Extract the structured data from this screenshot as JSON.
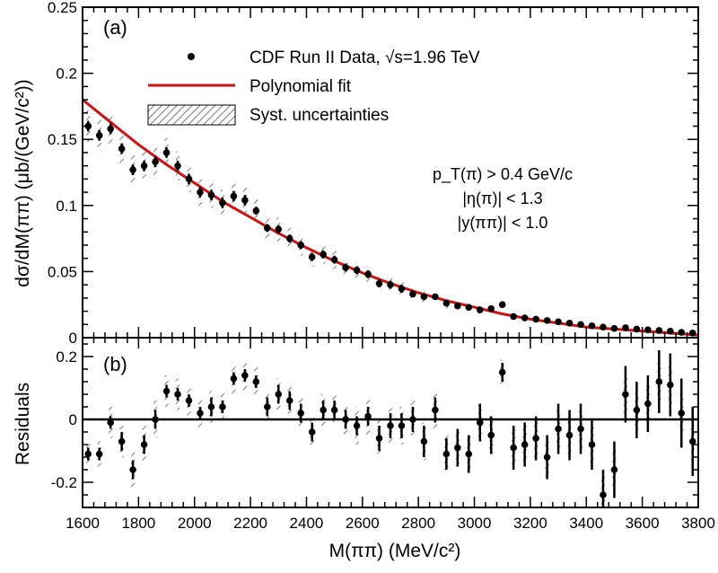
{
  "chart_data": [
    {
      "panel_label": "(a)",
      "type": "scatter",
      "ylabel": "dσ/dM(ππ)  (μb/(GeV/c²))",
      "ylim": [
        0,
        0.25
      ],
      "yticks": [
        0,
        0.05,
        0.1,
        0.15,
        0.2,
        0.25
      ],
      "ytick_labels": [
        "0",
        "0.05",
        "0.1",
        "0.15",
        "0.2",
        "0.25"
      ],
      "xlim": [
        1600,
        3800
      ],
      "legend": [
        {
          "label": "CDF Run II Data, √s=1.96 TeV",
          "kind": "points"
        },
        {
          "label": "Polynomial fit",
          "kind": "line",
          "color": "#cc1111"
        },
        {
          "label": "Syst. uncertainties",
          "kind": "hatch"
        }
      ],
      "annotations": [
        "p_T(π) > 0.4 GeV/c",
        "|η(π)| < 1.3",
        "|y(ππ)| < 1.0"
      ],
      "series": [
        {
          "name": "CDF Run II Data, √s=1.96 TeV",
          "x": [
            1620,
            1660,
            1700,
            1740,
            1780,
            1820,
            1860,
            1900,
            1940,
            1980,
            2020,
            2060,
            2100,
            2140,
            2180,
            2220,
            2260,
            2300,
            2340,
            2380,
            2420,
            2460,
            2500,
            2540,
            2580,
            2620,
            2660,
            2700,
            2740,
            2780,
            2820,
            2860,
            2900,
            2940,
            2980,
            3020,
            3060,
            3100,
            3140,
            3180,
            3220,
            3260,
            3300,
            3340,
            3380,
            3420,
            3460,
            3500,
            3540,
            3580,
            3620,
            3660,
            3700,
            3740,
            3780
          ],
          "y": [
            0.16,
            0.153,
            0.158,
            0.143,
            0.127,
            0.13,
            0.133,
            0.14,
            0.13,
            0.12,
            0.11,
            0.108,
            0.102,
            0.107,
            0.104,
            0.096,
            0.083,
            0.082,
            0.075,
            0.07,
            0.061,
            0.063,
            0.059,
            0.053,
            0.051,
            0.048,
            0.041,
            0.04,
            0.037,
            0.033,
            0.031,
            0.031,
            0.026,
            0.024,
            0.023,
            0.021,
            0.022,
            0.025,
            0.016,
            0.015,
            0.014,
            0.013,
            0.012,
            0.011,
            0.01,
            0.009,
            0.008,
            0.007,
            0.0075,
            0.0065,
            0.006,
            0.0055,
            0.005,
            0.004,
            0.0035
          ],
          "yerr": [
            0.004,
            0.004,
            0.004,
            0.004,
            0.004,
            0.004,
            0.004,
            0.004,
            0.004,
            0.004,
            0.004,
            0.004,
            0.004,
            0.004,
            0.004,
            0.003,
            0.003,
            0.003,
            0.003,
            0.003,
            0.003,
            0.003,
            0.003,
            0.003,
            0.003,
            0.003,
            0.003,
            0.003,
            0.003,
            0.002,
            0.002,
            0.002,
            0.002,
            0.002,
            0.002,
            0.002,
            0.002,
            0.002,
            0.002,
            0.002,
            0.002,
            0.002,
            0.002,
            0.002,
            0.002,
            0.002,
            0.002,
            0.002,
            0.002,
            0.002,
            0.002,
            0.002,
            0.002,
            0.002,
            0.002
          ],
          "syst": [
            0.012,
            0.012,
            0.012,
            0.011,
            0.011,
            0.011,
            0.011,
            0.011,
            0.011,
            0.01,
            0.01,
            0.01,
            0.01,
            0.01,
            0.01,
            0.009,
            0.009,
            0.009,
            0.008,
            0.008,
            0.007,
            0.007,
            0.007,
            0.006,
            0.006,
            0.006,
            0.005,
            0.005,
            0.005,
            0.004,
            0.004,
            0.004,
            0.004,
            0.003,
            0.003,
            0.003,
            0.003,
            0.003,
            0.003,
            0.002,
            0.002,
            0.002,
            0.002,
            0.002,
            0.002,
            0.002,
            0.002,
            0.002,
            0.002,
            0.002,
            0.002,
            0.002,
            0.002,
            0.002,
            0.002
          ]
        },
        {
          "name": "Polynomial fit",
          "type": "line",
          "x": [
            1600,
            1700,
            1800,
            1900,
            2000,
            2100,
            2200,
            2300,
            2400,
            2500,
            2600,
            2700,
            2800,
            2900,
            3000,
            3100,
            3200,
            3300,
            3400,
            3500,
            3600,
            3700,
            3800
          ],
          "y": [
            0.18,
            0.163,
            0.146,
            0.131,
            0.117,
            0.103,
            0.091,
            0.079,
            0.068,
            0.058,
            0.049,
            0.041,
            0.034,
            0.028,
            0.023,
            0.018,
            0.014,
            0.011,
            0.008,
            0.0065,
            0.005,
            0.0035,
            0.002
          ]
        }
      ]
    },
    {
      "panel_label": "(b)",
      "type": "scatter",
      "ylabel": "Residuals",
      "xlabel": "M(ππ)  (MeV/c²)",
      "ylim": [
        -0.28,
        0.26
      ],
      "yticks": [
        -0.2,
        0,
        0.2
      ],
      "ytick_labels": [
        "-0.2",
        "0",
        "0.2"
      ],
      "xlim": [
        1600,
        3800
      ],
      "xticks": [
        1600,
        1800,
        2000,
        2200,
        2400,
        2600,
        2800,
        3000,
        3200,
        3400,
        3600,
        3800
      ],
      "xtick_labels": [
        "1600",
        "1800",
        "2000",
        "2200",
        "2400",
        "2600",
        "2800",
        "3000",
        "3200",
        "3400",
        "3600",
        "3800"
      ],
      "reference_line": 0,
      "series": [
        {
          "name": "Residuals",
          "x": [
            1620,
            1660,
            1700,
            1740,
            1780,
            1820,
            1860,
            1900,
            1940,
            1980,
            2020,
            2060,
            2100,
            2140,
            2180,
            2220,
            2260,
            2300,
            2340,
            2380,
            2420,
            2460,
            2500,
            2540,
            2580,
            2620,
            2660,
            2700,
            2740,
            2780,
            2820,
            2860,
            2900,
            2940,
            2980,
            3020,
            3060,
            3100,
            3140,
            3180,
            3220,
            3260,
            3300,
            3340,
            3380,
            3420,
            3460,
            3500,
            3540,
            3580,
            3620,
            3660,
            3700,
            3740,
            3780
          ],
          "y": [
            -0.11,
            -0.11,
            -0.01,
            -0.07,
            -0.16,
            -0.08,
            0.0,
            0.09,
            0.08,
            0.06,
            0.02,
            0.04,
            0.04,
            0.13,
            0.14,
            0.12,
            0.04,
            0.08,
            0.06,
            0.02,
            -0.04,
            0.03,
            0.03,
            0.0,
            -0.02,
            0.01,
            -0.06,
            -0.02,
            -0.02,
            0.0,
            -0.07,
            0.03,
            -0.11,
            -0.09,
            -0.11,
            -0.01,
            -0.05,
            0.15,
            -0.09,
            -0.08,
            -0.06,
            -0.12,
            -0.03,
            -0.05,
            -0.03,
            -0.08,
            -0.24,
            -0.16,
            0.08,
            0.03,
            0.05,
            0.12,
            0.11,
            0.02,
            -0.07
          ],
          "yerr": [
            0.02,
            0.02,
            0.02,
            0.03,
            0.03,
            0.03,
            0.03,
            0.02,
            0.02,
            0.02,
            0.02,
            0.03,
            0.02,
            0.02,
            0.02,
            0.02,
            0.03,
            0.03,
            0.03,
            0.03,
            0.03,
            0.03,
            0.03,
            0.03,
            0.03,
            0.03,
            0.04,
            0.04,
            0.04,
            0.04,
            0.05,
            0.04,
            0.05,
            0.06,
            0.06,
            0.06,
            0.06,
            0.03,
            0.07,
            0.07,
            0.07,
            0.07,
            0.08,
            0.08,
            0.08,
            0.08,
            0.08,
            0.09,
            0.09,
            0.09,
            0.09,
            0.1,
            0.1,
            0.11,
            0.11
          ],
          "syst": [
            0.04,
            0.04,
            0.05,
            0.05,
            0.06,
            0.06,
            0.06,
            0.05,
            0.05,
            0.05,
            0.05,
            0.05,
            0.05,
            0.05,
            0.05,
            0.05,
            0.05,
            0.05,
            0.05,
            0.05,
            0.05,
            0.05,
            0.05,
            0.05,
            0.06,
            0.06,
            0.06,
            0.06,
            0.06,
            0.06,
            0.06,
            0.06,
            0.06,
            0.06,
            0.06,
            0.06,
            0.06,
            0.04,
            0.06,
            0.06,
            0.06,
            0.06,
            0.06,
            0.06,
            0.06,
            0.06,
            0.06,
            0.06,
            0.06,
            0.06,
            0.06,
            0.06,
            0.06,
            0.06,
            0.06
          ]
        }
      ]
    }
  ]
}
